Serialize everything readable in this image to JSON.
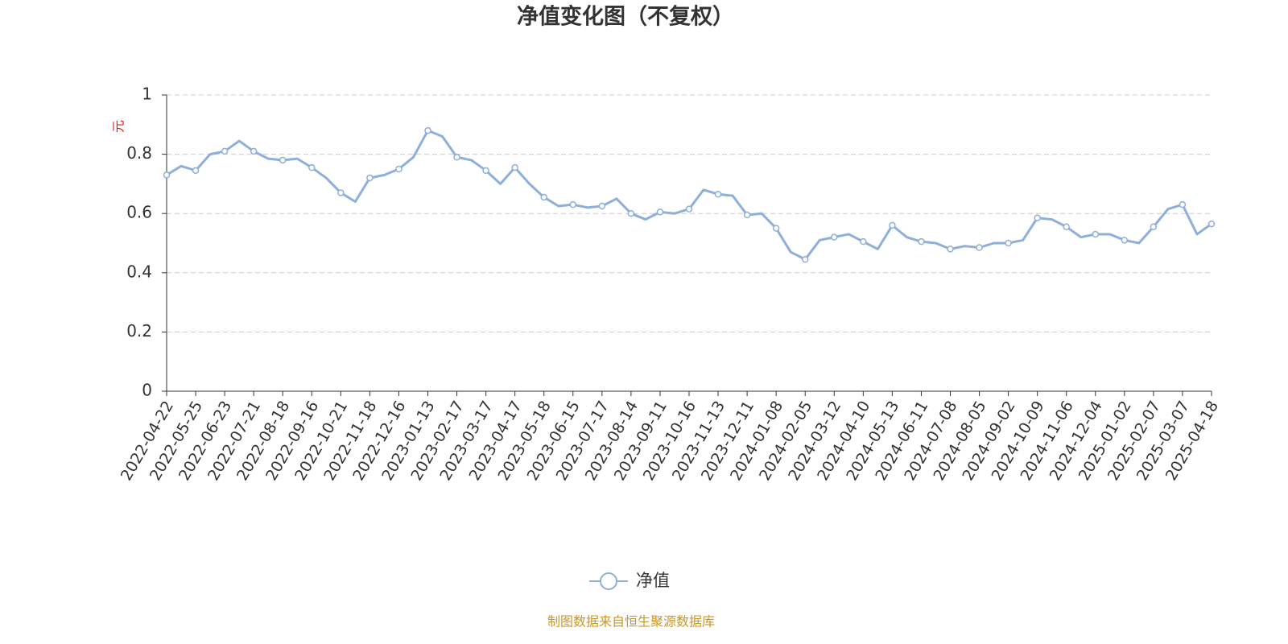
{
  "chart_data": {
    "type": "line",
    "title": "净值变化图（不复权）",
    "y_label": "元",
    "source": "制图数据来自恒生聚源数据库",
    "categories": [
      "2022-04-22",
      null,
      "2022-05-25",
      null,
      "2022-06-23",
      null,
      "2022-07-21",
      null,
      "2022-08-18",
      null,
      "2022-09-16",
      null,
      "2022-10-21",
      null,
      "2022-11-18",
      null,
      "2022-12-16",
      null,
      "2023-01-13",
      null,
      "2023-02-17",
      null,
      "2023-03-17",
      null,
      "2023-04-17",
      null,
      "2023-05-18",
      null,
      "2023-06-15",
      null,
      "2023-07-17",
      null,
      "2023-08-14",
      null,
      "2023-09-11",
      null,
      "2023-10-16",
      null,
      "2023-11-13",
      null,
      "2023-12-11",
      null,
      "2024-01-08",
      null,
      "2024-02-05",
      null,
      "2024-03-12",
      null,
      "2024-04-10",
      null,
      "2024-05-13",
      null,
      "2024-06-11",
      null,
      "2024-07-08",
      null,
      "2024-08-05",
      null,
      "2024-09-02",
      null,
      "2024-10-09",
      null,
      "2024-11-06",
      null,
      "2024-12-04",
      null,
      "2025-01-02",
      null,
      "2025-02-07",
      null,
      "2025-03-07",
      null,
      "2025-04-18"
    ],
    "series": [
      {
        "name": "净值",
        "color": "#8eafd9",
        "values": [
          0.73,
          0.76,
          0.745,
          0.8,
          0.81,
          0.845,
          0.81,
          0.785,
          0.78,
          0.785,
          0.755,
          0.72,
          0.67,
          0.64,
          0.72,
          0.73,
          0.75,
          0.79,
          0.88,
          0.86,
          0.79,
          0.78,
          0.745,
          0.7,
          0.755,
          0.7,
          0.655,
          0.625,
          0.63,
          0.62,
          0.625,
          0.65,
          0.6,
          0.58,
          0.605,
          0.6,
          0.615,
          0.68,
          0.665,
          0.66,
          0.595,
          0.6,
          0.55,
          0.47,
          0.445,
          0.51,
          0.52,
          0.53,
          0.505,
          0.48,
          0.56,
          0.52,
          0.505,
          0.5,
          0.48,
          0.49,
          0.485,
          0.5,
          0.5,
          0.51,
          0.585,
          0.58,
          0.555,
          0.52,
          0.53,
          0.53,
          0.51,
          0.5,
          0.555,
          0.615,
          0.63,
          0.53,
          0.565
        ]
      }
    ],
    "ylim": [
      0,
      1
    ],
    "yticks": [
      0,
      0.2,
      0.4,
      0.6,
      0.8,
      1
    ],
    "grid": true
  }
}
